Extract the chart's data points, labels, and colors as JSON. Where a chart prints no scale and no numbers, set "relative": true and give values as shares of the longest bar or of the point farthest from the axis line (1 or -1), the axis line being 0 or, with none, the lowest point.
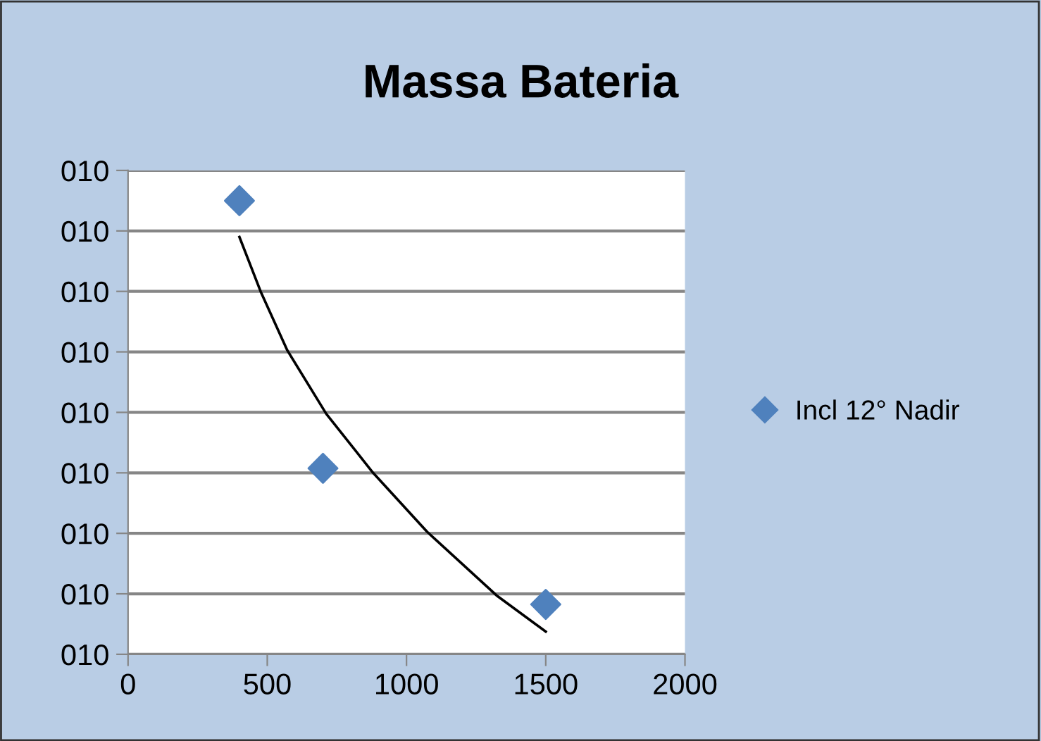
{
  "chart_data": {
    "type": "scatter",
    "title": "Massa Bateria",
    "relative": true,
    "series": [
      {
        "name": "Incl 12° Nadir",
        "color": "#4f81bd",
        "marker": "diamond",
        "x": [
          400,
          700,
          1500
        ],
        "values": [
          1,
          0.41,
          0.11
        ]
      },
      {
        "color": "#000000",
        "type": "line",
        "marker": "none",
        "line_style": "solid",
        "x": [
          400,
          476,
          572,
          712,
          880,
          1074,
          1323,
          1500
        ],
        "values": [
          0.92,
          0.8,
          0.67,
          0.53,
          0.4,
          0.27,
          0.13,
          0.05
        ]
      }
    ],
    "xlim": [
      0,
      2000
    ],
    "xticks": [
      0,
      500,
      1000,
      1500,
      2000
    ],
    "annotations": [
      "010",
      "010",
      "010",
      "010",
      "010",
      "010",
      "010",
      "010",
      "010"
    ],
    "grid": "y",
    "legend": "right"
  }
}
